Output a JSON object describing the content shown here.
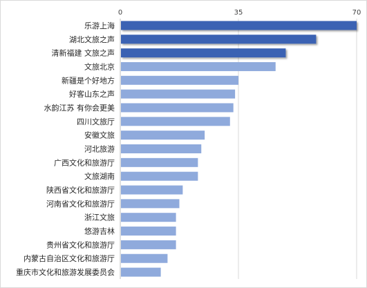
{
  "chart_data": {
    "type": "bar",
    "orientation": "horizontal",
    "title": "",
    "xlabel": "",
    "ylabel": "",
    "xlim": [
      0,
      70
    ],
    "x_ticks": [
      "0",
      "35",
      "70"
    ],
    "axis_position": "top",
    "grid": true,
    "categories": [
      "乐游上海",
      "湖北文旅之声",
      "清新福建 文旅之声",
      "文旅北京",
      "新疆是个好地方",
      "好客山东之声",
      "水韵江苏 有你会更美",
      "四川文旅厅",
      "安徽文旅",
      "河北旅游",
      "广西文化和旅游厅",
      "文旅湖南",
      "陕西省文化和旅游厅",
      "河南省文化和旅游厅",
      "浙江文旅",
      "悠游吉林",
      "贵州省文化和旅游厅",
      "内蒙古自治区文化和旅游厅",
      "重庆市文化和旅游发展委员会"
    ],
    "values": [
      70,
      58,
      49,
      46,
      35,
      34,
      33.5,
      32.5,
      25,
      24,
      23,
      23,
      18.5,
      17.5,
      16.5,
      16.5,
      16.5,
      14,
      12
    ],
    "highlight_count": 3,
    "colors": {
      "highlight": "#3a62b3",
      "bar": "#8faadc",
      "grid": "#d9d9d9",
      "axis": "#bfbfbf"
    }
  }
}
